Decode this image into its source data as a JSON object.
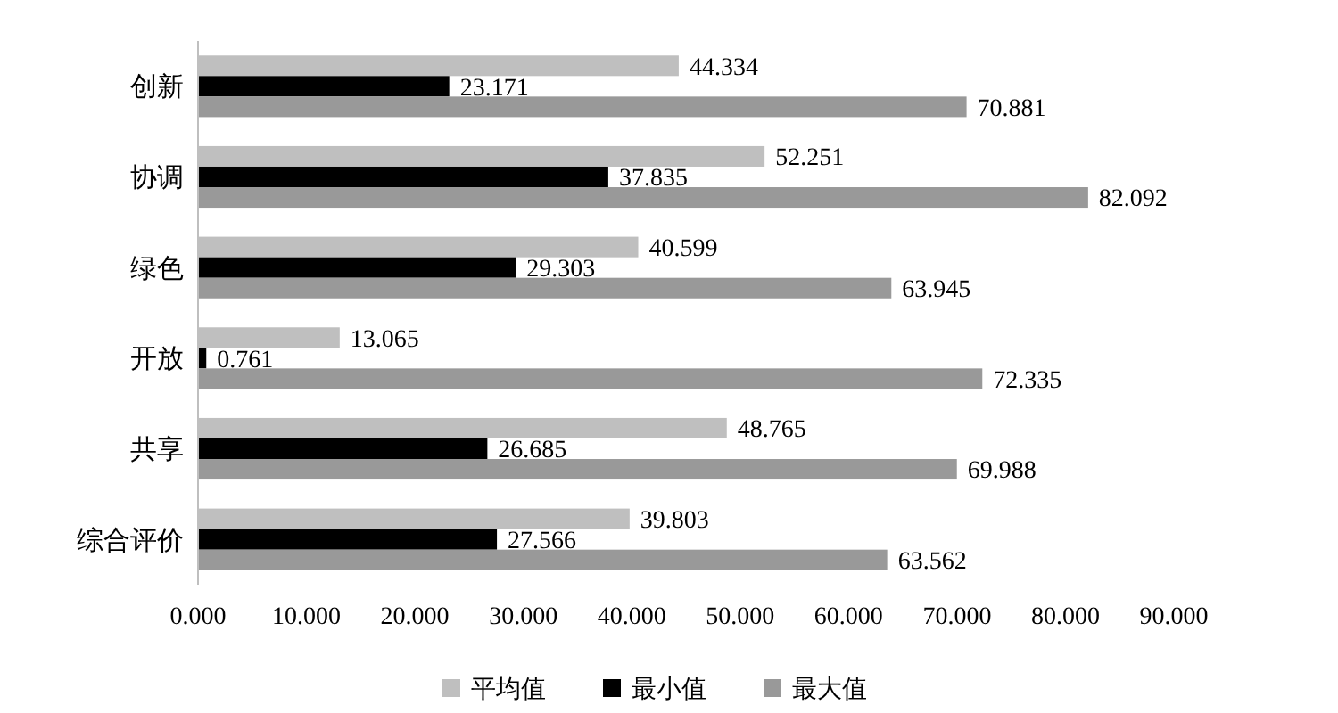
{
  "chart_data": {
    "type": "bar",
    "orientation": "horizontal",
    "categories": [
      "创新",
      "协调",
      "绿色",
      "开放",
      "共享",
      "综合评价"
    ],
    "series": [
      {
        "name": "平均值",
        "color": "#bfbfbf",
        "values": [
          44.334,
          52.251,
          40.599,
          13.065,
          48.765,
          39.803
        ]
      },
      {
        "name": "最小值",
        "color": "#000000",
        "values": [
          23.171,
          37.835,
          29.303,
          0.761,
          26.685,
          27.566
        ]
      },
      {
        "name": "最大值",
        "color": "#999999",
        "values": [
          70.881,
          82.092,
          63.945,
          72.335,
          69.988,
          63.562
        ]
      }
    ],
    "xlim": [
      0,
      90
    ],
    "xticks": [
      {
        "value": 0,
        "label": "0.000"
      },
      {
        "value": 10,
        "label": "10.000"
      },
      {
        "value": 20,
        "label": "20.000"
      },
      {
        "value": 30,
        "label": "30.000"
      },
      {
        "value": 40,
        "label": "40.000"
      },
      {
        "value": 50,
        "label": "50.000"
      },
      {
        "value": 60,
        "label": "60.000"
      },
      {
        "value": 70,
        "label": "70.000"
      },
      {
        "value": 80,
        "label": "80.000"
      },
      {
        "value": 90,
        "label": "90.000"
      }
    ],
    "data_labels": true,
    "grid": false,
    "legend": "bottom"
  }
}
